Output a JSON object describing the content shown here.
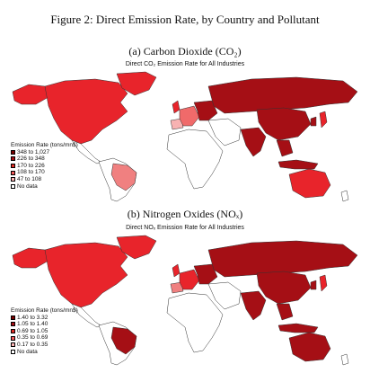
{
  "figure": {
    "title": "Figure 2: Direct Emission Rate, by Country and Pollutant"
  },
  "panels": [
    {
      "id": "co2",
      "heading": "(a) Carbon Dioxide (CO₂)",
      "map_title": "Direct CO₂ Emission Rate for All Industries",
      "legend_title": "Emission Rate (tons/mn$)",
      "legend": [
        {
          "label": "348 to 1,027",
          "color": "#7a0000"
        },
        {
          "label": "226 to 348",
          "color": "#a50f15"
        },
        {
          "label": "170 to 226",
          "color": "#de2d26"
        },
        {
          "label": "108 to 170",
          "color": "#f15a5a"
        },
        {
          "label": "47 to 108",
          "color": "#fcb4b4"
        },
        {
          "label": "No data",
          "color": "#ffffff"
        }
      ],
      "regions": {
        "north_america": "#e8242b",
        "greenland": "#e8242b",
        "alaska": "#e8242b",
        "central_america": "#ffffff",
        "south_america": "#ffffff",
        "brazil": "#f08080",
        "africa": "#ffffff",
        "western_europe": "#f06a6a",
        "iberia": "#f8b2b2",
        "uk": "#e8242b",
        "eastern_europe": "#a50f15",
        "russia": "#a50f15",
        "middle_east": "#ffffff",
        "india": "#a50f15",
        "china": "#a50f15",
        "se_asia": "#a50f15",
        "japan": "#e8242b",
        "korea": "#a50f15",
        "indonesia": "#a50f15",
        "australia": "#e8242b",
        "new_zealand": "#ffffff"
      }
    },
    {
      "id": "nox",
      "heading": "(b) Nitrogen Oxides (NOₓ)",
      "map_title": "Direct NOₓ Emission Rate for All Industries",
      "legend_title": "Emission Rate (tons/mn$)",
      "legend": [
        {
          "label": "1.40 to 3.32",
          "color": "#7a0000"
        },
        {
          "label": "1.05 to 1.40",
          "color": "#a50f15"
        },
        {
          "label": "0.69 to 1.05",
          "color": "#de2d26"
        },
        {
          "label": "0.35 to 0.69",
          "color": "#f15a5a"
        },
        {
          "label": "0.17 to 0.35",
          "color": "#fcb4b4"
        },
        {
          "label": "No data",
          "color": "#ffffff"
        }
      ],
      "regions": {
        "north_america": "#e8242b",
        "greenland": "#e8242b",
        "alaska": "#e8242b",
        "central_america": "#ffffff",
        "south_america": "#ffffff",
        "brazil": "#a50f15",
        "africa": "#ffffff",
        "western_europe": "#e8242b",
        "iberia": "#f08080",
        "uk": "#e8242b",
        "eastern_europe": "#a50f15",
        "russia": "#a50f15",
        "middle_east": "#ffffff",
        "india": "#a50f15",
        "china": "#a50f15",
        "se_asia": "#a50f15",
        "japan": "#e8242b",
        "korea": "#a50f15",
        "indonesia": "#a50f15",
        "australia": "#a50f15",
        "new_zealand": "#ffffff"
      }
    }
  ]
}
